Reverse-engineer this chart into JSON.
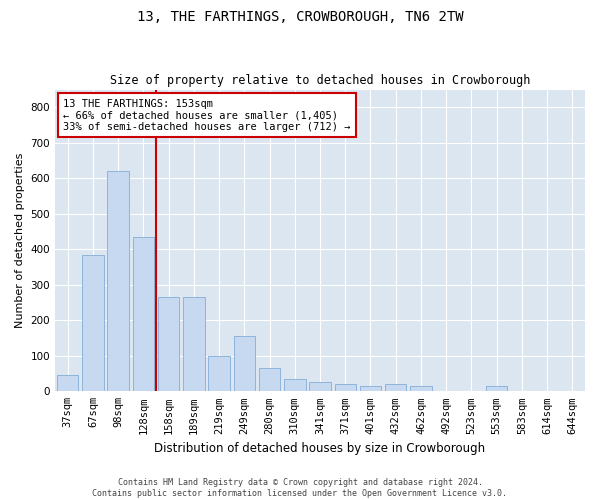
{
  "title1": "13, THE FARTHINGS, CROWBOROUGH, TN6 2TW",
  "title2": "Size of property relative to detached houses in Crowborough",
  "xlabel": "Distribution of detached houses by size in Crowborough",
  "ylabel": "Number of detached properties",
  "categories": [
    "37sqm",
    "67sqm",
    "98sqm",
    "128sqm",
    "158sqm",
    "189sqm",
    "219sqm",
    "249sqm",
    "280sqm",
    "310sqm",
    "341sqm",
    "371sqm",
    "401sqm",
    "432sqm",
    "462sqm",
    "492sqm",
    "523sqm",
    "553sqm",
    "583sqm",
    "614sqm",
    "644sqm"
  ],
  "values": [
    45,
    385,
    620,
    435,
    265,
    265,
    100,
    155,
    65,
    35,
    25,
    20,
    15,
    20,
    15,
    0,
    0,
    15,
    0,
    0,
    0
  ],
  "bar_color": "#c6d9f0",
  "bar_edge_color": "#8eb4da",
  "vline_color": "#cc0000",
  "vline_x_index": 3.5,
  "background_color": "#dce6f1",
  "fig_background": "#ffffff",
  "grid_color": "#ffffff",
  "annotation_text": "13 THE FARTHINGS: 153sqm\n← 66% of detached houses are smaller (1,405)\n33% of semi-detached houses are larger (712) →",
  "annotation_box_color": "#ffffff",
  "annotation_box_edge": "#cc0000",
  "footer": "Contains HM Land Registry data © Crown copyright and database right 2024.\nContains public sector information licensed under the Open Government Licence v3.0.",
  "ylim": [
    0,
    850
  ],
  "yticks": [
    0,
    100,
    200,
    300,
    400,
    500,
    600,
    700,
    800
  ],
  "title1_fontsize": 10,
  "title2_fontsize": 8.5,
  "xlabel_fontsize": 8.5,
  "ylabel_fontsize": 8,
  "tick_fontsize": 7.5,
  "annot_fontsize": 7.5,
  "footer_fontsize": 6
}
